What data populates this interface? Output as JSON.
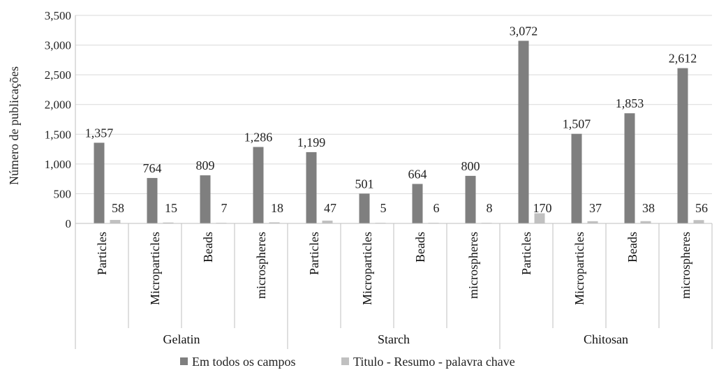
{
  "chart_data": {
    "type": "bar",
    "ylabel": "Número de publicações",
    "ylim": [
      0,
      3500
    ],
    "yticks": [
      0,
      500,
      1000,
      1500,
      2000,
      2500,
      3000,
      3500
    ],
    "ytick_labels": [
      "0",
      "500",
      "1,000",
      "1,500",
      "2,000",
      "2,500",
      "3,000",
      "3,500"
    ],
    "grid": "horizontal",
    "legend_position": "bottom",
    "groups": [
      {
        "name": "Gelatin",
        "categories": [
          "Particles",
          "Microparticles",
          "Beads",
          "microspheres"
        ]
      },
      {
        "name": "Starch",
        "categories": [
          "Particles",
          "Microparticles",
          "Beads",
          "microspheres"
        ]
      },
      {
        "name": "Chitosan",
        "categories": [
          "Particles",
          "Microparticles",
          "Beads",
          "microspheres"
        ]
      }
    ],
    "series": [
      {
        "name": "Em todos os campos",
        "color": "#7f7f7f",
        "values": [
          1357,
          764,
          809,
          1286,
          1199,
          501,
          664,
          800,
          3072,
          1507,
          1853,
          2612
        ],
        "labels": [
          "1,357",
          "764",
          "809",
          "1,286",
          "1,199",
          "501",
          "664",
          "800",
          "3,072",
          "1,507",
          "1,853",
          "2,612"
        ]
      },
      {
        "name": "Titulo - Resumo - palavra chave",
        "color": "#c0c0c0",
        "values": [
          58,
          15,
          7,
          18,
          47,
          5,
          6,
          8,
          170,
          37,
          38,
          56
        ],
        "labels": [
          "58",
          "15",
          "7",
          "18",
          "47",
          "5",
          "6",
          "8",
          "170",
          "37",
          "38",
          "56"
        ]
      }
    ]
  }
}
